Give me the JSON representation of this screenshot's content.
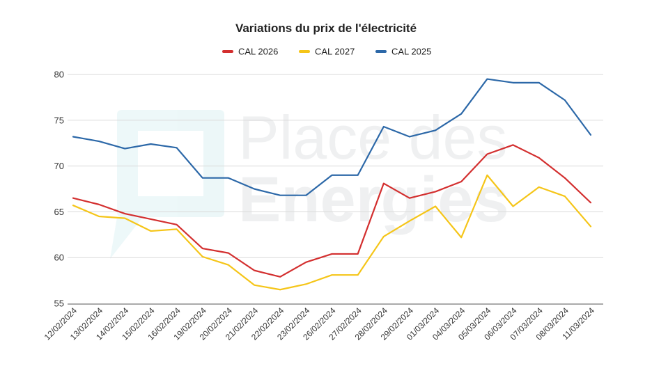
{
  "chart_data": {
    "type": "line",
    "title": "Variations du prix de l'électricité",
    "xlabel": "",
    "ylabel": "",
    "ylim": [
      55,
      80
    ],
    "yticks": [
      55,
      60,
      65,
      70,
      75,
      80
    ],
    "grid": true,
    "legend_position": "top-center",
    "categories": [
      "12/02/2024",
      "13/02/2024",
      "14/02/2024",
      "15/02/2024",
      "16/02/2024",
      "19/02/2024",
      "20/02/2024",
      "21/02/2024",
      "22/02/2024",
      "23/02/2024",
      "26/02/2024",
      "27/02/2024",
      "28/02/2024",
      "29/02/2024",
      "01/03/2024",
      "04/03/2024",
      "05/03/2024",
      "06/03/2024",
      "07/03/2024",
      "08/03/2024",
      "11/03/2024"
    ],
    "series": [
      {
        "name": "CAL 2026",
        "color": "#d32f2f",
        "values": [
          66.5,
          65.8,
          64.8,
          64.2,
          63.6,
          61.0,
          60.5,
          58.6,
          57.9,
          59.5,
          60.4,
          60.4,
          68.1,
          66.5,
          67.2,
          68.3,
          71.3,
          72.3,
          70.9,
          68.7,
          66.0
        ]
      },
      {
        "name": "CAL 2027",
        "color": "#f5c518",
        "values": [
          65.7,
          64.5,
          64.3,
          62.9,
          63.1,
          60.1,
          59.2,
          57.0,
          56.5,
          57.1,
          58.1,
          58.1,
          62.3,
          64.0,
          65.6,
          62.2,
          69.0,
          65.6,
          67.7,
          66.7,
          63.4
        ]
      },
      {
        "name": "CAL 2025",
        "color": "#2c68a8",
        "values": [
          73.2,
          72.7,
          71.9,
          72.4,
          72.0,
          68.7,
          68.7,
          67.5,
          66.8,
          66.8,
          69.0,
          69.0,
          74.3,
          73.2,
          73.9,
          75.7,
          79.5,
          79.1,
          79.1,
          77.2,
          73.4
        ]
      }
    ],
    "watermark": {
      "line1": "Place des",
      "line2": "Energies",
      "icon": "place-des-energies-logo-icon",
      "color": "#4fb8c2"
    }
  }
}
